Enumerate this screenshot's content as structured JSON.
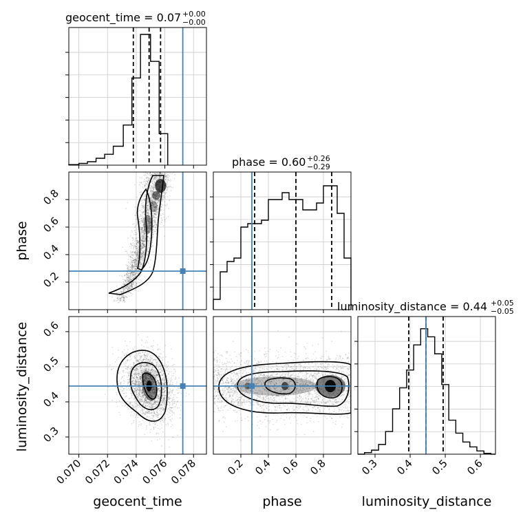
{
  "parameters": [
    "geocent_time",
    "phase",
    "luminosity_distance"
  ],
  "chart_data": {
    "type": "corner",
    "grid": true,
    "truth_color": "#4682b4",
    "panels": [
      {
        "id": "hist-geocent_time",
        "type": "histogram",
        "param": "geocent_time",
        "title": {
          "param": "geocent_time",
          "value": "0.07",
          "plus": "+0.00",
          "minus": "−0.00"
        },
        "xlim": [
          0.0693,
          0.0789
        ],
        "bin_edges": [
          0.0693,
          0.07,
          0.0706,
          0.0712,
          0.0718,
          0.0724,
          0.0731,
          0.0737,
          0.0743,
          0.075,
          0.0756,
          0.0762
        ],
        "counts": [
          1,
          3,
          6,
          12,
          19,
          33,
          70,
          152,
          228,
          181,
          55
        ],
        "ylim": [
          0,
          240
        ],
        "quantiles": [
          0.0738,
          0.0749,
          0.0757
        ],
        "truth": 0.07725
      },
      {
        "id": "hist-phase",
        "type": "histogram",
        "param": "phase",
        "title": {
          "param": "phase",
          "value": "0.60",
          "plus": "+0.26",
          "minus": "−0.29"
        },
        "xlim": [
          0.0,
          1.0
        ],
        "bin_edges": [
          0.0,
          0.05,
          0.1,
          0.15,
          0.2,
          0.25,
          0.3,
          0.35,
          0.4,
          0.45,
          0.5,
          0.55,
          0.6,
          0.65,
          0.7,
          0.75,
          0.8,
          0.85,
          0.9,
          0.95,
          1.0
        ],
        "counts": [
          15,
          55,
          70,
          75,
          120,
          125,
          125,
          130,
          160,
          160,
          170,
          160,
          160,
          145,
          145,
          155,
          180,
          180,
          140,
          75
        ],
        "ylim": [
          0,
          200
        ],
        "quantiles": [
          0.3,
          0.6,
          0.86
        ],
        "truth": 0.28
      },
      {
        "id": "hist-luminosity_distance",
        "type": "histogram",
        "param": "luminosity_distance",
        "title": {
          "param": "luminosity_distance",
          "value": "0.44",
          "plus": "+0.05",
          "minus": "−0.05"
        },
        "xlim": [
          0.251,
          0.643
        ],
        "bin_edges": [
          0.251,
          0.27,
          0.29,
          0.31,
          0.33,
          0.35,
          0.37,
          0.39,
          0.41,
          0.43,
          0.45,
          0.47,
          0.49,
          0.51,
          0.53,
          0.55,
          0.57,
          0.59,
          0.61,
          0.63,
          0.643
        ],
        "counts": [
          0,
          2,
          5,
          12,
          28,
          56,
          82,
          104,
          135,
          155,
          145,
          124,
          86,
          42,
          26,
          15,
          9,
          4,
          1,
          0
        ],
        "ylim": [
          0,
          170
        ],
        "quantiles": [
          0.396,
          0.445,
          0.494
        ],
        "truth": 0.445
      },
      {
        "id": "scatter-geocent-phase",
        "type": "contour-scatter",
        "x": "geocent_time",
        "y": "phase",
        "xlim": [
          0.0693,
          0.0789
        ],
        "ylim": [
          0.0,
          1.0
        ],
        "truth": [
          0.07725,
          0.28
        ]
      },
      {
        "id": "scatter-geocent-lumdist",
        "type": "contour-scatter",
        "x": "geocent_time",
        "y": "luminosity_distance",
        "xlim": [
          0.0693,
          0.0789
        ],
        "ylim": [
          0.251,
          0.643
        ],
        "truth": [
          0.07725,
          0.445
        ]
      },
      {
        "id": "scatter-phase-lumdist",
        "type": "contour-scatter",
        "x": "phase",
        "y": "luminosity_distance",
        "xlim": [
          0.0,
          1.0
        ],
        "ylim": [
          0.251,
          0.643
        ],
        "truth": [
          0.28,
          0.445
        ]
      }
    ],
    "ticks": {
      "geocent_time": [
        "0.070",
        "0.072",
        "0.074",
        "0.076",
        "0.078"
      ],
      "phase": [
        "0.2",
        "0.4",
        "0.6",
        "0.8"
      ],
      "luminosity_distance": [
        "0.3",
        "0.4",
        "0.5",
        "0.6"
      ]
    }
  }
}
